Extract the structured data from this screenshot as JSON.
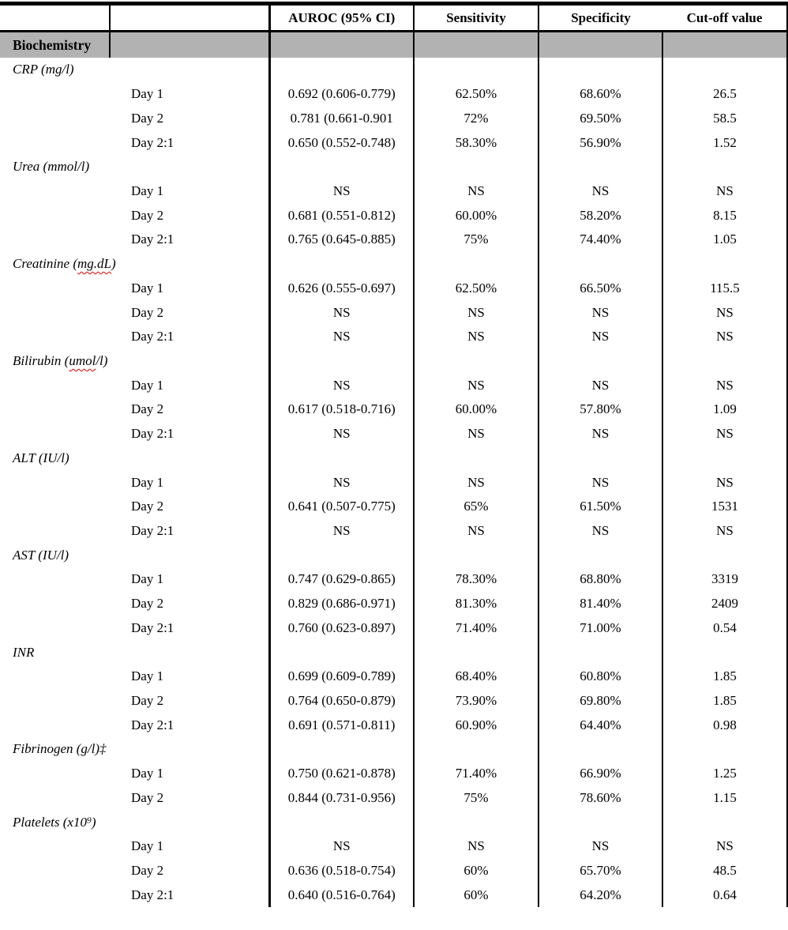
{
  "table": {
    "columns": [
      "",
      "",
      "AUROC (95% CI)",
      "Sensitivity",
      "Specificity",
      "Cut-off value"
    ],
    "banner": {
      "label": "Biochemistry",
      "bg": "#b2b2b2"
    },
    "colors": {
      "border": "#000000",
      "squiggle": "#dd0000",
      "page_bg": "#ffffff"
    },
    "na_text": "NS",
    "groups": [
      {
        "name_prefix": "CRP (mg/l)",
        "name_misspelled": "",
        "name_suffix": "",
        "rows": [
          {
            "label": "Day 1",
            "auroc": "0.692 (0.606-0.779)",
            "sensitivity": "62.50%",
            "specificity": "68.60%",
            "cutoff": "26.5"
          },
          {
            "label": "Day 2",
            "auroc": "0.781 (0.661-0.901",
            "sensitivity": "72%",
            "specificity": "69.50%",
            "cutoff": "58.5"
          },
          {
            "label": "Day 2:1",
            "auroc": "0.650 (0.552-0.748)",
            "sensitivity": "58.30%",
            "specificity": "56.90%",
            "cutoff": "1.52"
          }
        ]
      },
      {
        "name_prefix": "Urea (mmol/l)",
        "name_misspelled": "",
        "name_suffix": "",
        "rows": [
          {
            "label": "Day 1",
            "auroc": "NS",
            "sensitivity": "NS",
            "specificity": "NS",
            "cutoff": "NS"
          },
          {
            "label": "Day 2",
            "auroc": "0.681 (0.551-0.812)",
            "sensitivity": "60.00%",
            "specificity": "58.20%",
            "cutoff": "8.15"
          },
          {
            "label": "Day 2:1",
            "auroc": "0.765 (0.645-0.885)",
            "sensitivity": "75%",
            "specificity": "74.40%",
            "cutoff": "1.05"
          }
        ]
      },
      {
        "name_prefix": "Creatinine (",
        "name_misspelled": "mg.dL",
        "name_suffix": ")",
        "rows": [
          {
            "label": "Day 1",
            "auroc": "0.626 (0.555-0.697)",
            "sensitivity": "62.50%",
            "specificity": "66.50%",
            "cutoff": "115.5"
          },
          {
            "label": "Day 2",
            "auroc": "NS",
            "sensitivity": "NS",
            "specificity": "NS",
            "cutoff": "NS"
          },
          {
            "label": "Day 2:1",
            "auroc": "NS",
            "sensitivity": "NS",
            "specificity": "NS",
            "cutoff": "NS"
          }
        ]
      },
      {
        "name_prefix": "Bilirubin (",
        "name_misspelled": "umol",
        "name_suffix": "/l)",
        "rows": [
          {
            "label": "Day 1",
            "auroc": "NS",
            "sensitivity": "NS",
            "specificity": "NS",
            "cutoff": "NS"
          },
          {
            "label": "Day 2",
            "auroc": "0.617 (0.518-0.716)",
            "sensitivity": "60.00%",
            "specificity": "57.80%",
            "cutoff": "1.09"
          },
          {
            "label": "Day 2:1",
            "auroc": "NS",
            "sensitivity": "NS",
            "specificity": "NS",
            "cutoff": "NS"
          }
        ]
      },
      {
        "name_prefix": "ALT (IU/l)",
        "name_misspelled": "",
        "name_suffix": "",
        "rows": [
          {
            "label": "Day 1",
            "auroc": "NS",
            "sensitivity": "NS",
            "specificity": "NS",
            "cutoff": "NS"
          },
          {
            "label": "Day 2",
            "auroc": "0.641 (0.507-0.775)",
            "sensitivity": "65%",
            "specificity": "61.50%",
            "cutoff": "1531"
          },
          {
            "label": "Day 2:1",
            "auroc": "NS",
            "sensitivity": "NS",
            "specificity": "NS",
            "cutoff": "NS"
          }
        ]
      },
      {
        "name_prefix": "AST (IU/l)",
        "name_misspelled": "",
        "name_suffix": "",
        "rows": [
          {
            "label": "Day 1",
            "auroc": "0.747 (0.629-0.865)",
            "sensitivity": "78.30%",
            "specificity": "68.80%",
            "cutoff": "3319"
          },
          {
            "label": "Day 2",
            "auroc": "0.829 (0.686-0.971)",
            "sensitivity": "81.30%",
            "specificity": "81.40%",
            "cutoff": "2409"
          },
          {
            "label": "Day 2:1",
            "auroc": "0.760 (0.623-0.897)",
            "sensitivity": "71.40%",
            "specificity": "71.00%",
            "cutoff": "0.54"
          }
        ]
      },
      {
        "name_prefix": "INR",
        "name_misspelled": "",
        "name_suffix": "",
        "rows": [
          {
            "label": "Day 1",
            "auroc": "0.699 (0.609-0.789)",
            "sensitivity": "68.40%",
            "specificity": "60.80%",
            "cutoff": "1.85"
          },
          {
            "label": "Day 2",
            "auroc": "0.764 (0.650-0.879)",
            "sensitivity": "73.90%",
            "specificity": "69.80%",
            "cutoff": "1.85"
          },
          {
            "label": "Day 2:1",
            "auroc": "0.691 (0.571-0.811)",
            "sensitivity": "60.90%",
            "specificity": "64.40%",
            "cutoff": "0.98"
          }
        ]
      },
      {
        "name_prefix": "Fibrinogen (g/l)‡",
        "name_misspelled": "",
        "name_suffix": "",
        "rows": [
          {
            "label": "Day 1",
            "auroc": "0.750 (0.621-0.878)",
            "sensitivity": "71.40%",
            "specificity": "66.90%",
            "cutoff": "1.25"
          },
          {
            "label": "Day 2",
            "auroc": "0.844 (0.731-0.956)",
            "sensitivity": "75%",
            "specificity": "78.60%",
            "cutoff": "1.15"
          }
        ]
      },
      {
        "name_prefix": "Platelets (x10⁹)",
        "name_misspelled": "",
        "name_suffix": "",
        "rows": [
          {
            "label": "Day 1",
            "auroc": "NS",
            "sensitivity": "NS",
            "specificity": "NS",
            "cutoff": "NS"
          },
          {
            "label": "Day 2",
            "auroc": "0.636 (0.518-0.754)",
            "sensitivity": "60%",
            "specificity": "65.70%",
            "cutoff": "48.5"
          },
          {
            "label": "Day 2:1",
            "auroc": "0.640 (0.516-0.764)",
            "sensitivity": "60%",
            "specificity": "64.20%",
            "cutoff": "0.64"
          }
        ]
      }
    ]
  }
}
